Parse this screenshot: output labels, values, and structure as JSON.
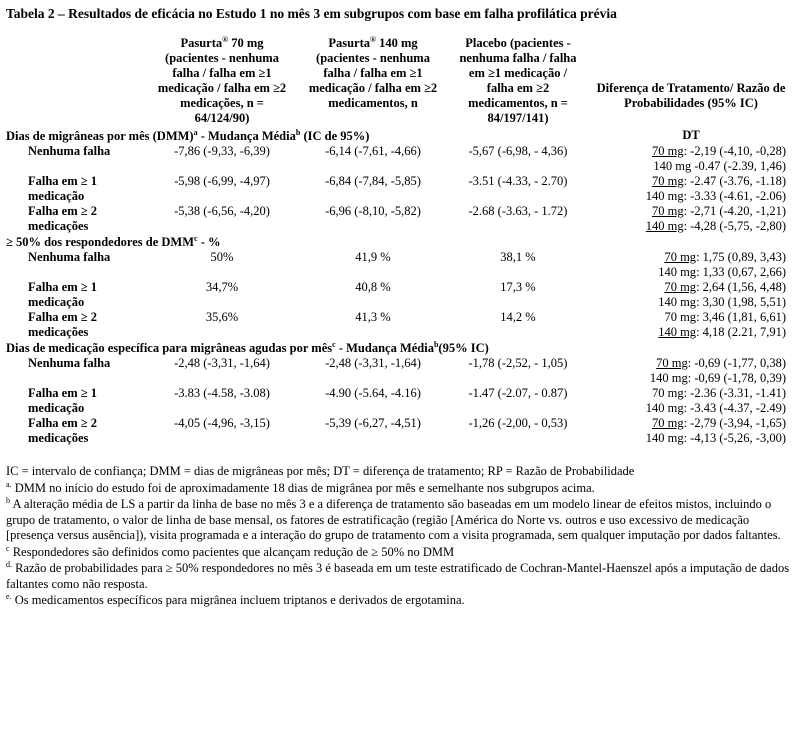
{
  "title": "Tabela 2 – Resultados de eficácia no Estudo 1 no mês 3 em subgrupos com base em falha profilática prévia",
  "columns": [
    [
      {
        "text": "Pasurta"
      },
      {
        "sup": "®"
      },
      {
        "text": " 70 mg (pacientes - nenhuma falha / falha em ≥1 medicação / falha em ≥2 medicações, n = 64/124/90)"
      }
    ],
    [
      {
        "text": "Pasurta"
      },
      {
        "sup": "®"
      },
      {
        "text": " 140 mg (pacientes - nenhuma falha / falha em ≥1 medicação / falha em ≥2 medicamentos, n"
      }
    ],
    [
      {
        "text": "Placebo (pacientes - nenhuma falha / falha em ≥1 medicação / falha em ≥2 medicamentos, n = 84/197/141)"
      }
    ],
    [
      {
        "text": "Diferença de Tratamento/ Razão de Probabilidades (95% IC)"
      }
    ]
  ],
  "sections": [
    {
      "heading": [
        {
          "text": "Dias de migrâneas por mês (DMM)"
        },
        {
          "sup": "a"
        },
        {
          "text": " - Mudança Média"
        },
        {
          "sup": "b"
        },
        {
          "text": " (IC de 95%)"
        }
      ],
      "diff_heading": "DT",
      "rows": [
        {
          "label": "Nenhuma falha",
          "values": [
            "-7,86 (-9,33, -6,39)",
            "-6,14 (-7,61, -4,66)",
            "-5,67 (-6,98, - 4,36)"
          ],
          "diff": [
            {
              "dose": "70 mg",
              "rest": ": -2,19 (-4,10, -0,28)",
              "underline": true
            },
            {
              "dose": "140 mg",
              "rest": " -0.47 (-2.39, 1,46)",
              "underline": false
            }
          ]
        },
        {
          "label": "Falha em ≥ 1 medicação",
          "values": [
            "-5,98 (-6,99, -4,97)",
            "-6,84 (-7,84, -5,85)",
            "-3.51 (-4.33, - 2.70)"
          ],
          "diff": [
            {
              "dose": "70 mg",
              "rest": ":  -2.47 (-3.76, -1.18)",
              "underline": true
            },
            {
              "dose": "140 mg",
              "rest": ": -3.33 (-4.61, -2.06)",
              "underline": false
            }
          ]
        },
        {
          "label": "Falha em ≥ 2 medicações",
          "values": [
            "-5,38 (-6,56, -4,20)",
            "-6,96 (-8,10, -5,82)",
            "-2.68 (-3.63, - 1.72)"
          ],
          "diff": [
            {
              "dose": "70 mg",
              "rest": ": -2,71 (-4.20, -1,21)",
              "underline": true
            },
            {
              "dose": "140 mg",
              "rest": ": -4,28 (-5,75, -2,80)",
              "underline": true
            }
          ]
        }
      ]
    },
    {
      "heading": [
        {
          "text": "≥ 50% dos respondedores de DMM"
        },
        {
          "sup": "c"
        },
        {
          "text": " - %"
        }
      ],
      "rows": [
        {
          "label": "Nenhuma falha",
          "values": [
            "50%",
            "41,9 %",
            "38,1 %"
          ],
          "diff": [
            {
              "dose": "70 mg",
              "rest": ": 1,75 (0,89, 3,43)",
              "underline": true
            },
            {
              "dose": "140 mg",
              "rest": ": 1,33 (0,67, 2,66)",
              "underline": false
            }
          ]
        },
        {
          "label": "Falha em ≥ 1 medicação",
          "values": [
            "34,7%",
            "40,8 %",
            "17,3 %"
          ],
          "diff": [
            {
              "dose": "70 mg",
              "rest": ": 2,64 (1,56, 4,48)",
              "underline": true
            },
            {
              "dose": "140 mg",
              "rest": ": 3,30 (1,98, 5,51)",
              "underline": false
            }
          ]
        },
        {
          "label": "Falha em ≥ 2 medicações",
          "values": [
            "35,6%",
            "41,3 %",
            "14,2 %"
          ],
          "diff": [
            {
              "dose": "70 mg",
              "rest": ": 3,46 (1,81, 6,61)",
              "underline": false
            },
            {
              "dose": "140 mg",
              "rest": ": 4,18 (2.21, 7,91)",
              "underline": true
            }
          ]
        }
      ]
    },
    {
      "heading": [
        {
          "text": "Dias de medicação específica para migrâneas agudas por mês"
        },
        {
          "sup": "c"
        },
        {
          "text": " - Mudança Média"
        },
        {
          "sup": "b"
        },
        {
          "text": "(95% IC)"
        }
      ],
      "rows": [
        {
          "label": "Nenhuma falha",
          "values": [
            "-2,48 (-3,31, -1,64)",
            "-2,48 (-3,31, -1,64)",
            "-1,78 (-2,52, - 1,05)"
          ],
          "diff": [
            {
              "dose": "70 mg",
              "rest": ": -0,69 (-1,77, 0,38)",
              "underline": true
            },
            {
              "dose": "140 mg",
              "rest": ": -0,69 (-1,78, 0,39)",
              "underline": false
            }
          ]
        },
        {
          "label": "Falha em ≥ 1 medicação",
          "values": [
            "-3.83 (-4.58, -3.08)",
            "-4.90 (-5.64, -4.16)",
            "-1.47 (-2.07, - 0.87)"
          ],
          "diff": [
            {
              "dose": "70 mg",
              "rest": ": -2.36 (-3.31, -1.41)",
              "underline": false
            },
            {
              "dose": "140 mg",
              "rest": ": -3.43 (-4.37, -2.49)",
              "underline": false
            }
          ]
        },
        {
          "label": "Falha em ≥ 2 medicações",
          "values": [
            "-4,05 (-4,96, -3,15)",
            "-5,39 (-6,27, -4,51)",
            "-1,26 (-2,00, - 0,53)"
          ],
          "diff": [
            {
              "dose": "70 mg",
              "rest": ": -2,79 (-3,94, -1,65)",
              "underline": true
            },
            {
              "dose": "140 mg",
              "rest": ": -4,13 (-5,26, -3,00)",
              "underline": false
            }
          ]
        }
      ]
    }
  ],
  "footnotes": [
    {
      "text": "IC = intervalo de confiança; DMM = dias de migrâneas por mês; DT = diferença de tratamento; RP = Razão de Probabilidade"
    },
    {
      "marker": "a.",
      "text": "DMM no início do estudo foi de aproximadamente 18 dias de migrânea por mês e semelhante nos subgrupos acima."
    },
    {
      "marker": "b",
      "text": "A alteração média de LS a partir da linha de base no mês 3 e a diferença de tratamento são baseadas em um modelo linear de efeitos mistos, incluindo o grupo de tratamento, o valor de linha de base mensal, os fatores de estratificação (região [América do Norte vs. outros e uso excessivo de medicação [presença versus ausência]), visita programada e a interação do grupo de tratamento com a visita programada, sem qualquer imputação por dados faltantes."
    },
    {
      "marker": "c",
      "text": "Respondedores são definidos como pacientes que alcançam redução de ≥ 50% no DMM"
    },
    {
      "marker": "d.",
      "text": "Razão de probabilidades para ≥ 50% respondedores no mês 3 é baseada em um teste estratificado de Cochran-Mantel-Haenszel após a imputação de dados faltantes como não resposta."
    },
    {
      "marker": "e.",
      "text": "Os medicamentos específicos para migrânea incluem triptanos e derivados de ergotamina."
    }
  ]
}
